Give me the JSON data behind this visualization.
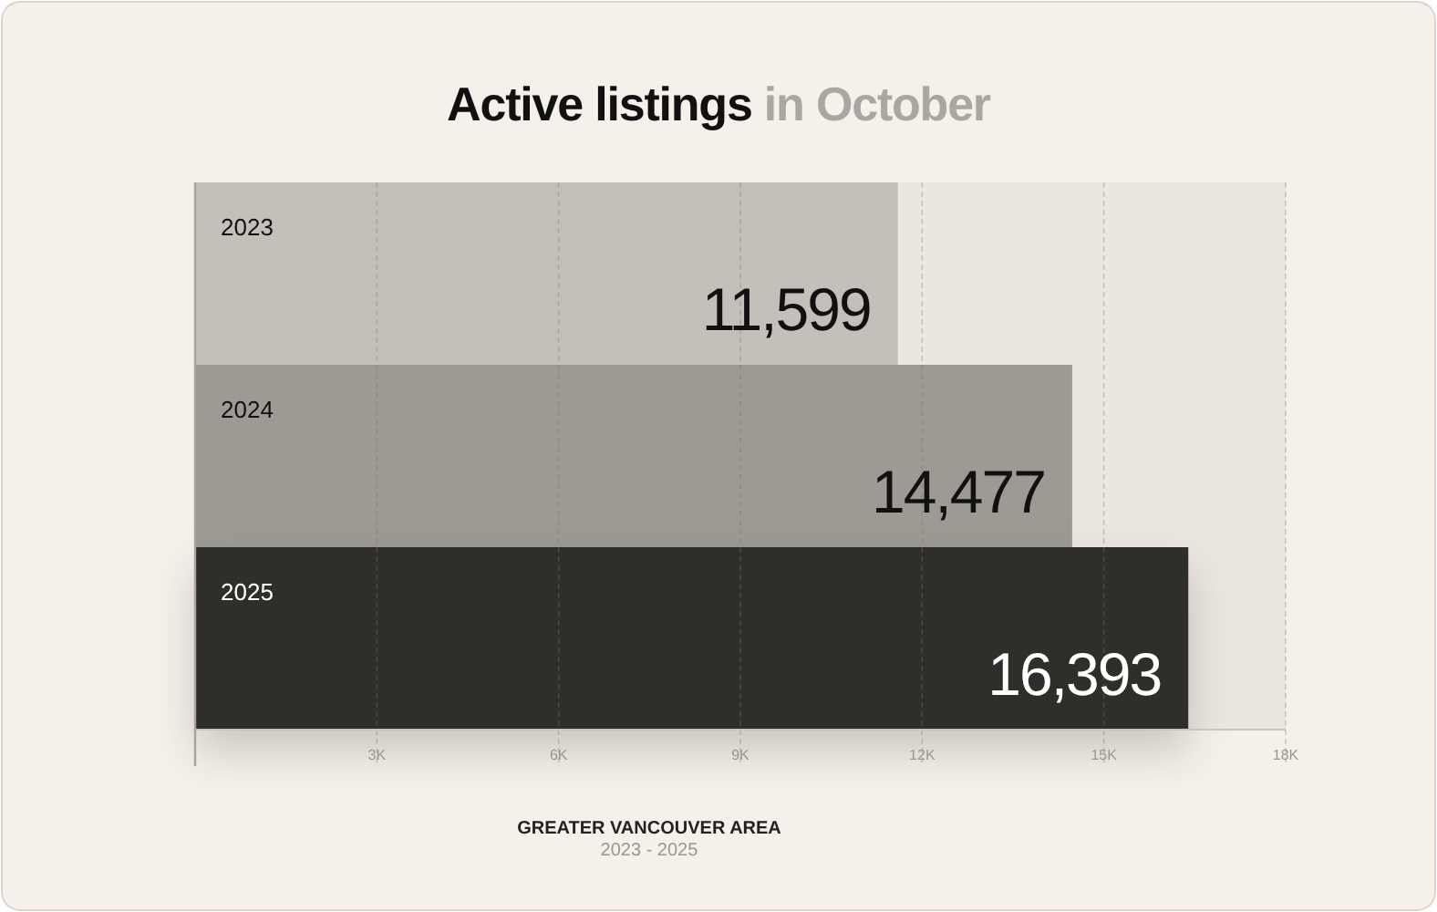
{
  "chart_data": {
    "type": "bar",
    "orientation": "horizontal",
    "title": "Active listings in October",
    "subtitle": "GREATER VANCOUVER AREA",
    "annotations": [
      "2023 - 2025"
    ],
    "categories": [
      "2023",
      "2024",
      "2025"
    ],
    "values": [
      11599,
      14477,
      16393
    ],
    "value_labels": [
      "11,599",
      "14,477",
      "16,393"
    ],
    "colors": [
      "#c4bfb8",
      "#9d9993",
      "#2f2d2b"
    ],
    "xlim": [
      0,
      18000
    ],
    "xticks": [
      {
        "value": 3000,
        "label": "3K"
      },
      {
        "value": 6000,
        "label": "6K"
      },
      {
        "value": 9000,
        "label": "9K"
      },
      {
        "value": 12000,
        "label": "12K"
      },
      {
        "value": 15000,
        "label": "15K"
      },
      {
        "value": 18000,
        "label": "18K"
      }
    ],
    "grid": "x"
  }
}
